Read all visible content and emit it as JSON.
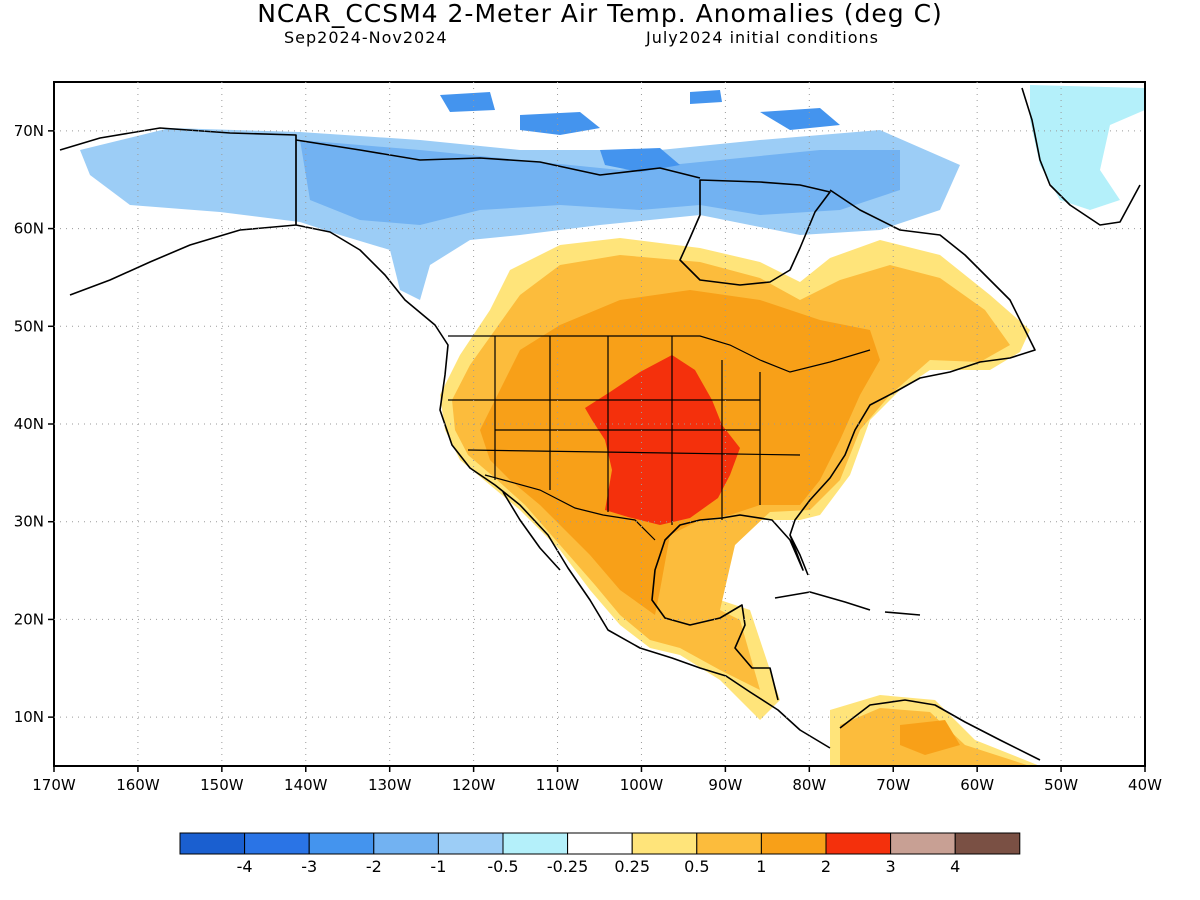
{
  "header": {
    "title": "NCAR_CCSM4 2-Meter Air Temp. Anomalies (deg C)",
    "period": "Sep2024-Nov2024",
    "init": "July2024 initial conditions"
  },
  "map": {
    "projection": "cylindrical lat/lon",
    "lon_range": [
      -170,
      -40
    ],
    "lat_range": [
      5,
      75
    ],
    "lon_ticks": [
      "170W",
      "160W",
      "150W",
      "140W",
      "130W",
      "120W",
      "110W",
      "100W",
      "90W",
      "80W",
      "70W",
      "60W",
      "50W",
      "40W"
    ],
    "lat_ticks": [
      "10N",
      "20N",
      "30N",
      "40N",
      "50N",
      "60N",
      "70N"
    ],
    "grid": "dotted"
  },
  "colorbar": {
    "colors": [
      "#1a5fd0",
      "#2a74e6",
      "#4494ee",
      "#72b2f2",
      "#9ccdf6",
      "#b4f0fa",
      "#ffffff",
      "#ffe47a",
      "#fcbc3c",
      "#f8a018",
      "#f4300c",
      "#c8a094",
      "#7a5044"
    ],
    "labels": [
      "-4",
      "-3",
      "-2",
      "-1",
      "-0.5",
      "-0.25",
      "0.25",
      "0.5",
      "1",
      "2",
      "3",
      "4"
    ]
  }
}
